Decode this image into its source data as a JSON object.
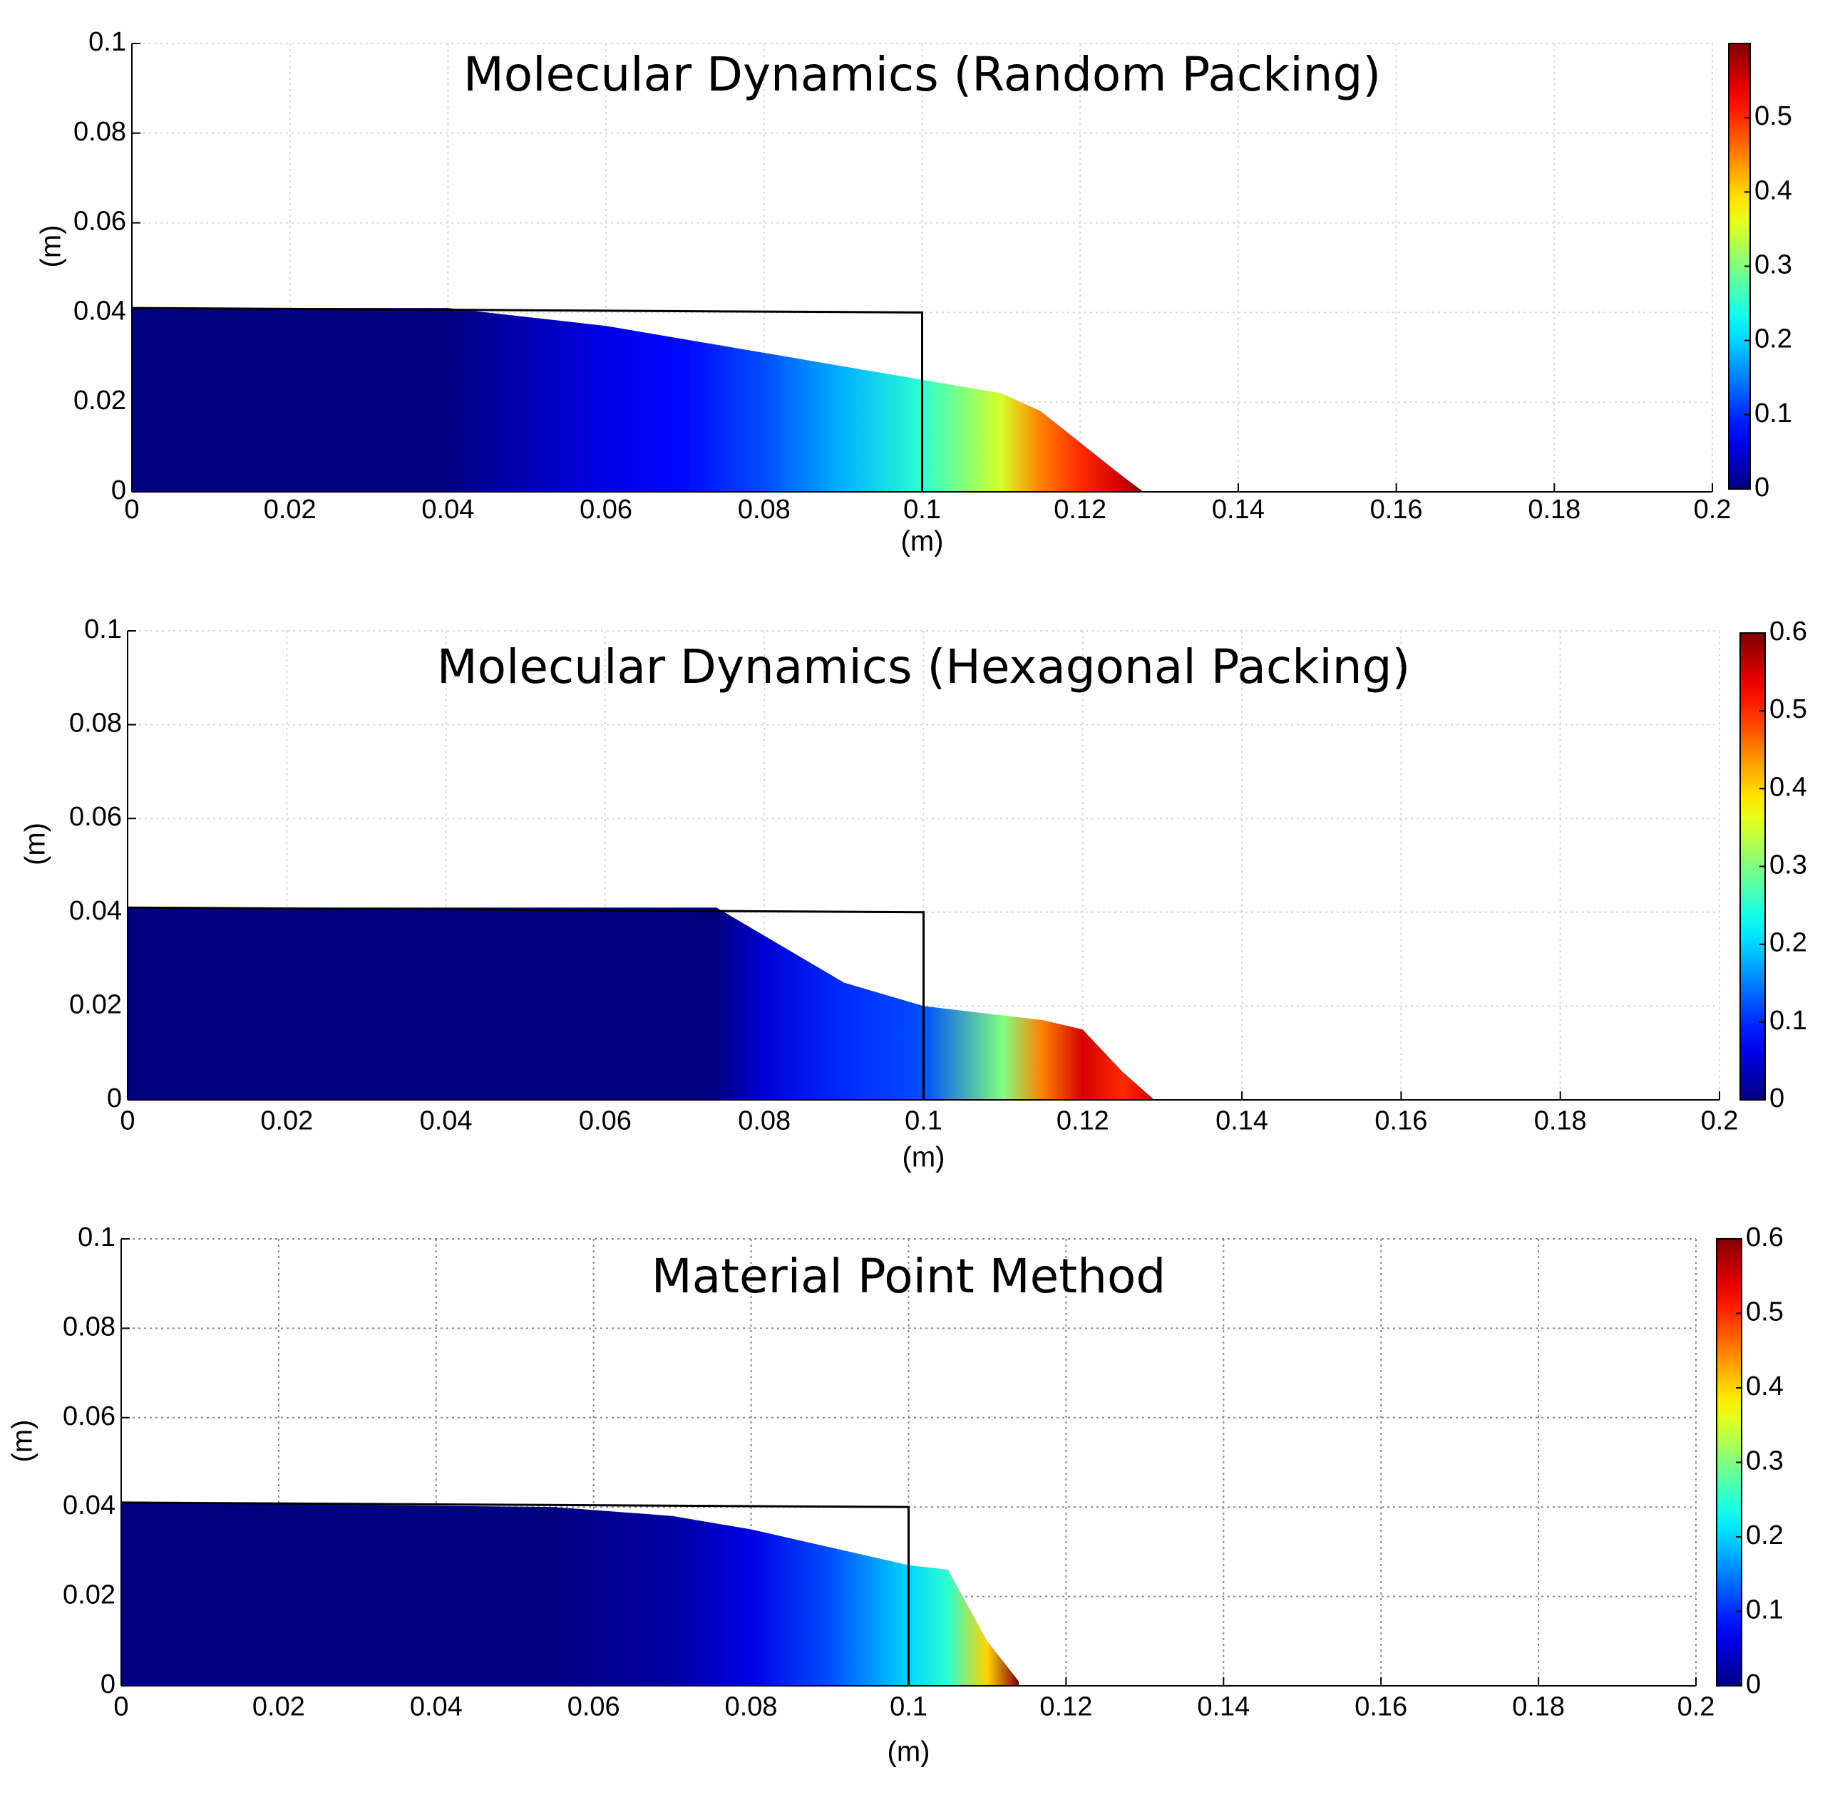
{
  "chart_data": [
    {
      "type": "area",
      "title": "Molecular Dynamics (Random Packing)",
      "x_label": "(m)",
      "y_label": "(m)",
      "xlim": [
        0,
        0.2
      ],
      "ylim": [
        0,
        0.1
      ],
      "xticks": [
        0,
        0.02,
        0.04,
        0.06,
        0.08,
        0.1,
        0.12,
        0.14,
        0.16,
        0.18,
        0.2
      ],
      "yticks": [
        0,
        0.02,
        0.04,
        0.06,
        0.08,
        0.1
      ],
      "grid": true,
      "grid_color": "#d8d8d8",
      "colormap": "jet",
      "clim": [
        0,
        0.6
      ],
      "cticks": [
        0,
        0.1,
        0.2,
        0.3,
        0.4,
        0.5
      ],
      "x": [
        0,
        0.04,
        0.05,
        0.06,
        0.07,
        0.08,
        0.09,
        0.1,
        0.11,
        0.115,
        0.12,
        0.125,
        0.128
      ],
      "y": [
        0.041,
        0.041,
        0.039,
        0.037,
        0.034,
        0.031,
        0.028,
        0.025,
        0.022,
        0.018,
        0.011,
        0.004,
        0
      ],
      "speed": [
        0,
        0,
        0.03,
        0.06,
        0.08,
        0.12,
        0.18,
        0.25,
        0.35,
        0.45,
        0.5,
        0.55,
        0.6
      ],
      "initial_column": {
        "x": [
          0,
          0.1,
          0.1
        ],
        "y": [
          0.041,
          0.04,
          0
        ]
      }
    },
    {
      "type": "area",
      "title": "Molecular Dynamics (Hexagonal Packing)",
      "x_label": "(m)",
      "y_label": "(m)",
      "xlim": [
        0,
        0.2
      ],
      "ylim": [
        0,
        0.1
      ],
      "xticks": [
        0,
        0.02,
        0.04,
        0.06,
        0.08,
        0.1,
        0.12,
        0.14,
        0.16,
        0.18,
        0.2
      ],
      "yticks": [
        0,
        0.02,
        0.04,
        0.06,
        0.08,
        0.1
      ],
      "grid": true,
      "grid_color": "#d8d8d8",
      "colormap": "jet",
      "clim": [
        0,
        0.6
      ],
      "cticks": [
        0,
        0.1,
        0.2,
        0.3,
        0.4,
        0.5,
        0.6
      ],
      "x": [
        0,
        0.074,
        0.08,
        0.09,
        0.1,
        0.11,
        0.115,
        0.12,
        0.125,
        0.129
      ],
      "y": [
        0.041,
        0.041,
        0.035,
        0.025,
        0.02,
        0.018,
        0.017,
        0.015,
        0.006,
        0
      ],
      "speed": [
        0,
        0,
        0.05,
        0.1,
        0.12,
        0.3,
        0.45,
        0.55,
        0.5,
        0.55
      ],
      "initial_column": {
        "x": [
          0,
          0.1,
          0.1
        ],
        "y": [
          0.041,
          0.04,
          0
        ]
      }
    },
    {
      "type": "area",
      "title": "Material Point Method",
      "x_label": "(m)",
      "y_label": "(m)",
      "xlim": [
        0,
        0.2
      ],
      "ylim": [
        0,
        0.1
      ],
      "xticks": [
        0,
        0.02,
        0.04,
        0.06,
        0.08,
        0.1,
        0.12,
        0.14,
        0.16,
        0.18,
        0.2
      ],
      "yticks": [
        0,
        0.02,
        0.04,
        0.06,
        0.08,
        0.1
      ],
      "grid": true,
      "grid_color": "#888888",
      "colormap": "jet",
      "clim": [
        0,
        0.6
      ],
      "cticks": [
        0,
        0.1,
        0.2,
        0.3,
        0.4,
        0.5,
        0.6
      ],
      "x": [
        0,
        0.055,
        0.07,
        0.08,
        0.09,
        0.1,
        0.105,
        0.11,
        0.114
      ],
      "y": [
        0.041,
        0.04,
        0.038,
        0.035,
        0.031,
        0.027,
        0.026,
        0.01,
        0.001
      ],
      "speed": [
        0,
        0,
        0.02,
        0.06,
        0.12,
        0.2,
        0.25,
        0.4,
        0.6
      ],
      "initial_column": {
        "x": [
          0,
          0.1,
          0.1
        ],
        "y": [
          0.041,
          0.04,
          0
        ]
      }
    }
  ]
}
